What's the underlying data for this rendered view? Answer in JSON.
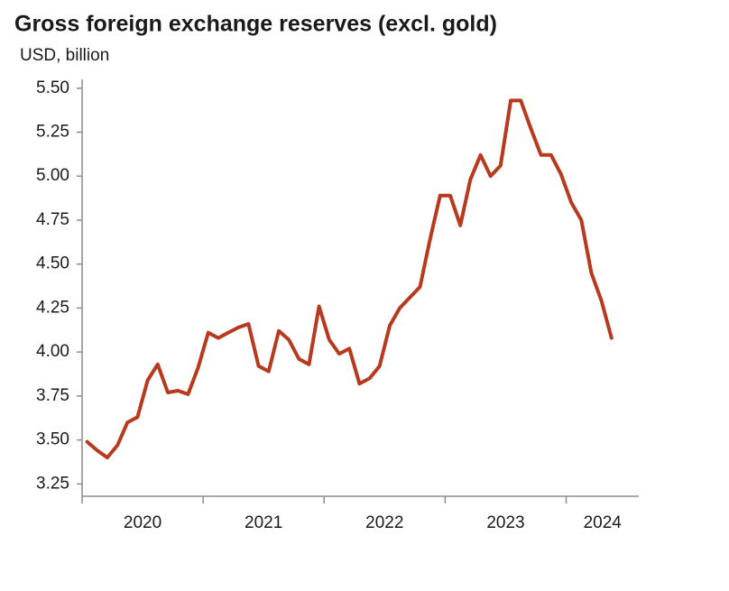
{
  "chart_data": {
    "type": "line",
    "title": "Gross foreign exchange reserves (excl. gold)",
    "subtitle": "USD, billion",
    "x": [
      2020.042,
      2020.125,
      2020.208,
      2020.292,
      2020.375,
      2020.458,
      2020.542,
      2020.625,
      2020.708,
      2020.792,
      2020.875,
      2020.958,
      2021.042,
      2021.125,
      2021.208,
      2021.292,
      2021.375,
      2021.458,
      2021.542,
      2021.625,
      2021.708,
      2021.792,
      2021.875,
      2021.958,
      2022.042,
      2022.125,
      2022.208,
      2022.292,
      2022.375,
      2022.458,
      2022.542,
      2022.625,
      2022.708,
      2022.792,
      2022.875,
      2022.958,
      2023.042,
      2023.125,
      2023.208,
      2023.292,
      2023.375,
      2023.458,
      2023.542,
      2023.625,
      2023.708,
      2023.792,
      2023.875,
      2023.958,
      2024.042,
      2024.125,
      2024.208,
      2024.292,
      2024.375
    ],
    "series": [
      {
        "name": "Gross foreign exchange reserves",
        "color": "#b83a1e",
        "values": [
          3.49,
          3.44,
          3.4,
          3.47,
          3.6,
          3.63,
          3.84,
          3.93,
          3.77,
          3.78,
          3.76,
          3.91,
          4.11,
          4.08,
          4.11,
          4.14,
          4.16,
          3.92,
          3.89,
          4.12,
          4.07,
          3.96,
          3.93,
          4.26,
          4.07,
          3.99,
          4.02,
          3.82,
          3.85,
          3.92,
          4.15,
          4.25,
          4.31,
          4.37,
          4.64,
          4.89,
          4.89,
          4.72,
          4.98,
          5.12,
          5.0,
          5.06,
          5.43,
          5.43,
          5.27,
          5.12,
          5.12,
          5.01,
          4.85,
          4.75,
          4.45,
          4.29,
          4.08
        ]
      }
    ],
    "xlim": [
      2020,
      2024.6
    ],
    "xticks": [
      2020,
      2021,
      2022,
      2023,
      2024
    ],
    "ylim": [
      3.18,
      5.55
    ],
    "yticks": [
      3.25,
      {
        "value": 3.5,
        "label": "3.50"
      },
      3.75,
      {
        "value": 4,
        "label": "4.00"
      },
      4.25,
      {
        "value": 4.5,
        "label": "4.50"
      },
      4.75,
      {
        "value": 5,
        "label": "5.00"
      },
      5.25,
      {
        "value": 5.5,
        "label": "5.50"
      }
    ]
  }
}
